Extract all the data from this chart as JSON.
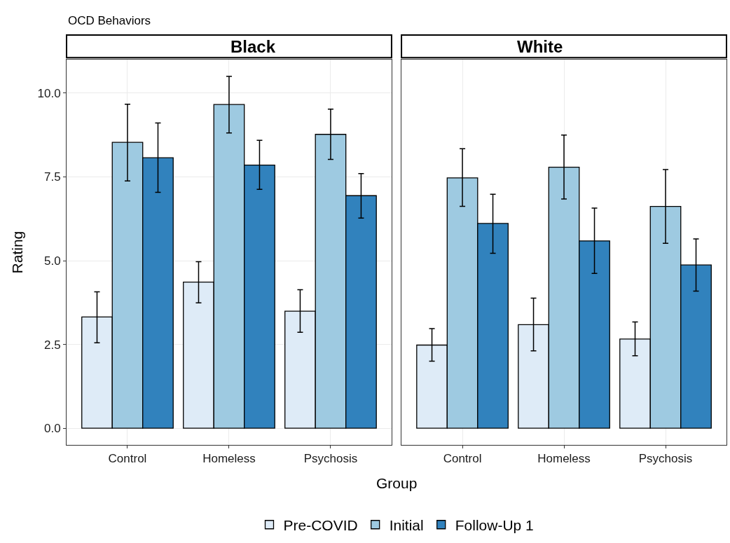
{
  "chart_data": [
    {
      "type": "bar",
      "title": "Black",
      "subtitle": "OCD Behaviors",
      "xlabel": "Group",
      "ylabel": "Rating",
      "categories": [
        "Control",
        "Homeless",
        "Psychosis"
      ],
      "ylim": [
        -0.5,
        11.0
      ],
      "yticks": [
        {
          "value": 0,
          "label": "0.0"
        },
        {
          "value": 2.5,
          "label": "2.5"
        },
        {
          "value": 5,
          "label": "5.0"
        },
        {
          "value": 7.5,
          "label": "7.5"
        },
        {
          "value": 10,
          "label": "10.0"
        }
      ],
      "grid": true,
      "legend": "bottom",
      "series": [
        {
          "name": "Pre-COVID",
          "color": "#deebf7",
          "values": [
            3.32,
            4.36,
            3.49
          ],
          "errors": [
            [
              2.55,
              4.07
            ],
            [
              3.74,
              4.97
            ],
            [
              2.86,
              4.13
            ]
          ]
        },
        {
          "name": "Initial",
          "color": "#9ecae1",
          "values": [
            8.53,
            9.66,
            8.77
          ],
          "errors": [
            [
              7.38,
              9.67
            ],
            [
              8.81,
              10.5
            ],
            [
              8.02,
              9.52
            ]
          ]
        },
        {
          "name": "Follow-Up 1",
          "color": "#3182bd",
          "values": [
            8.07,
            7.85,
            6.94
          ],
          "errors": [
            [
              7.04,
              9.11
            ],
            [
              7.13,
              8.59
            ],
            [
              6.27,
              7.6
            ]
          ]
        }
      ]
    },
    {
      "type": "bar",
      "title": "White",
      "categories": [
        "Control",
        "Homeless",
        "Psychosis"
      ],
      "ylim": [
        -0.5,
        11.0
      ],
      "grid": true,
      "tick_labels": "x",
      "series": [
        {
          "color": "#deebf7",
          "values": [
            2.48,
            3.09,
            2.66
          ],
          "errors": [
            [
              2.0,
              2.97
            ],
            [
              2.31,
              3.88
            ],
            [
              2.16,
              3.17
            ]
          ]
        },
        {
          "color": "#9ecae1",
          "values": [
            7.47,
            7.79,
            6.62
          ],
          "errors": [
            [
              6.62,
              8.34
            ],
            [
              6.84,
              8.75
            ],
            [
              5.52,
              7.72
            ]
          ]
        },
        {
          "color": "#3182bd",
          "values": [
            6.11,
            5.59,
            4.87
          ],
          "errors": [
            [
              5.22,
              6.98
            ],
            [
              4.62,
              6.57
            ],
            [
              4.09,
              5.65
            ]
          ]
        }
      ]
    }
  ]
}
